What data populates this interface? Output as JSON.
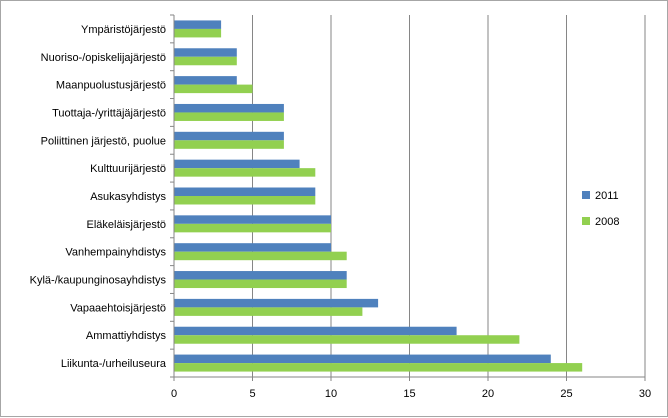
{
  "chart_data": {
    "type": "bar",
    "orientation": "horizontal",
    "categories": [
      "Ympäristöjärjestö",
      "Nuoriso-/opiskelijajärjestö",
      "Maanpuolustusjärjestö",
      "Tuottaja-/yrittäjäjärjestö",
      "Poliittinen järjestö, puolue",
      "Kulttuurijärjestö",
      "Asukasyhdistys",
      "Eläkeläisjärjestö",
      "Vanhempainyhdistys",
      "Kylä-/kaupunginosayhdistys",
      "Vapaaehtoisjärjestö",
      "Ammattiyhdistys",
      "Liikunta-/urheiluseura"
    ],
    "series": [
      {
        "name": "2011",
        "color": "#4f81bd",
        "values": [
          3,
          4,
          4,
          7,
          7,
          8,
          9,
          10,
          10,
          11,
          13,
          18,
          24
        ]
      },
      {
        "name": "2008",
        "color": "#92d050",
        "values": [
          3,
          4,
          5,
          7,
          7,
          9,
          9,
          10,
          11,
          11,
          12,
          22,
          26
        ]
      }
    ],
    "xlim": [
      0,
      30
    ],
    "xticks": [
      0,
      5,
      10,
      15,
      20,
      25,
      30
    ],
    "grid": true,
    "legend_position": "right"
  }
}
